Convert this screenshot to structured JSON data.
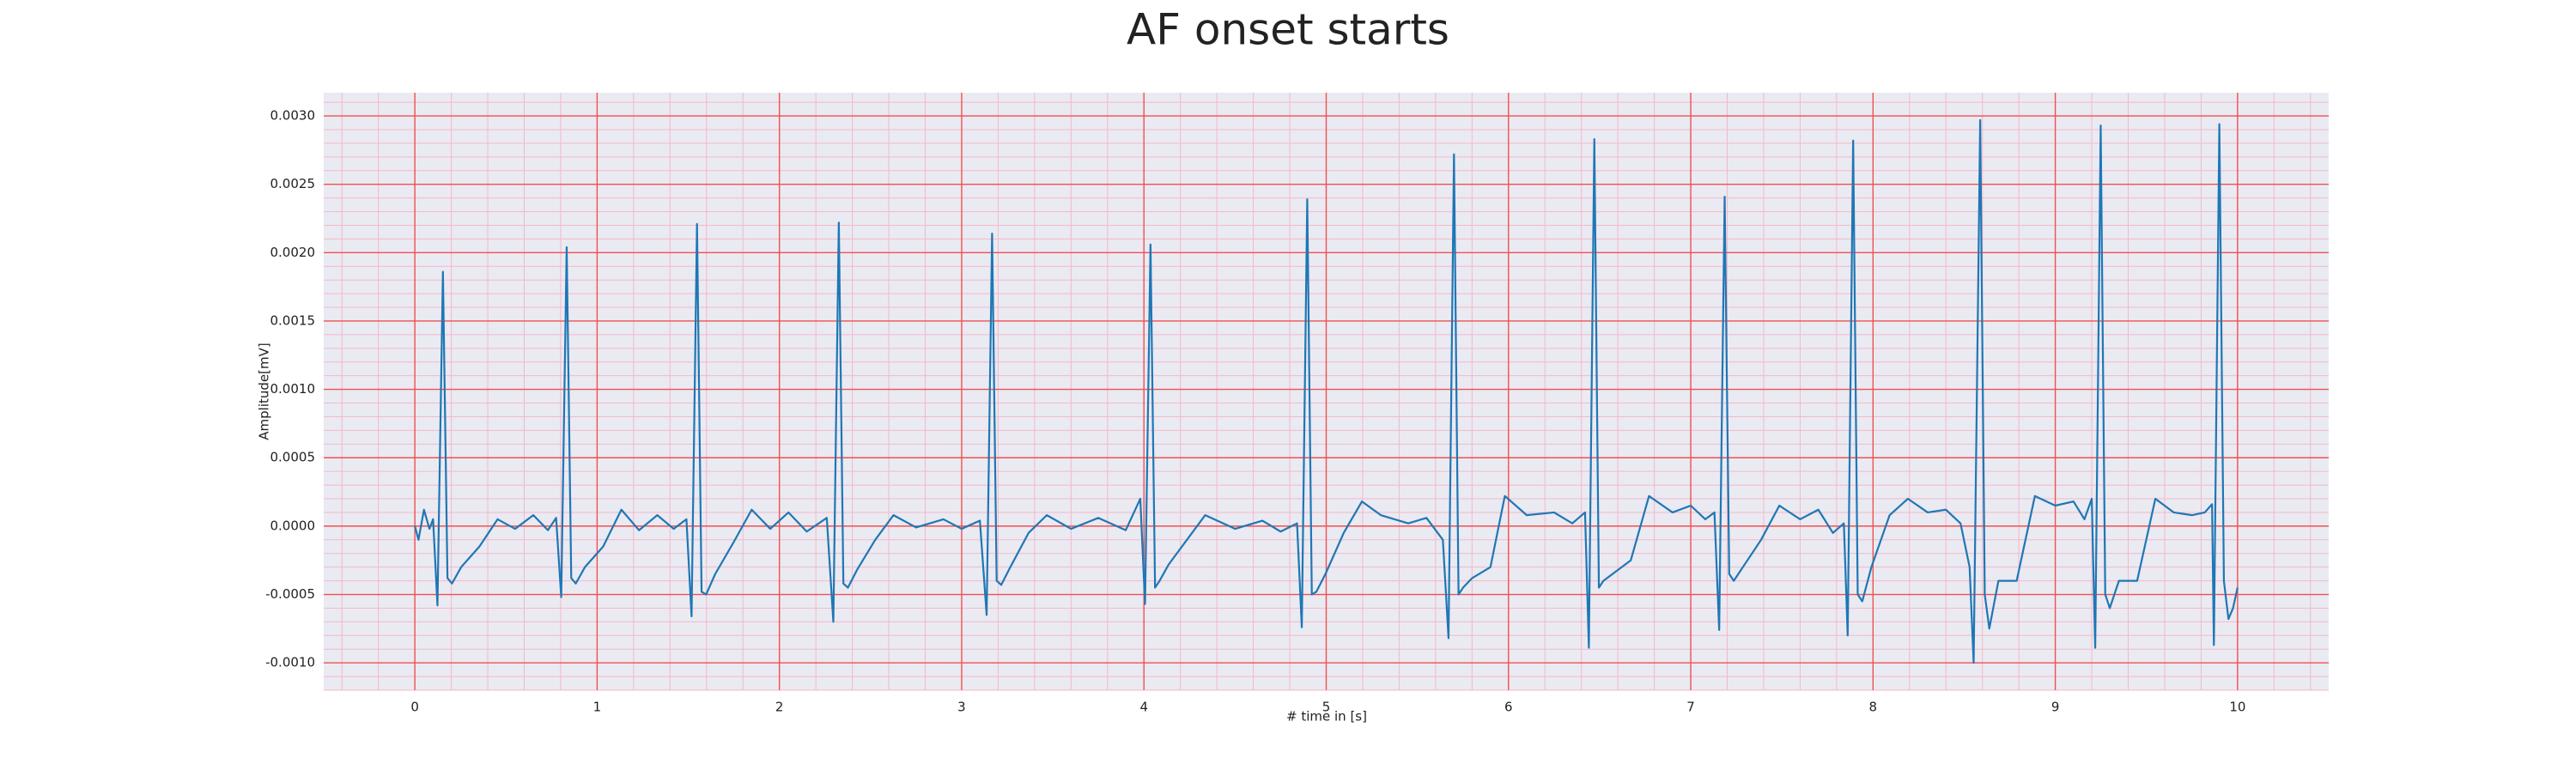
{
  "chart_data": {
    "type": "line",
    "title": "AF onset starts",
    "x_label": "# time in [s]",
    "y_label": "Amplitude[mV]",
    "color": "#1f77b4",
    "grid": true,
    "xlim": [
      -0.5,
      10.5
    ],
    "ylim": [
      -0.0012,
      0.00317
    ],
    "xticks": [
      0,
      1,
      2,
      3,
      4,
      5,
      6,
      7,
      8,
      9,
      10
    ],
    "yticks": [
      {
        "value": -0.001,
        "label": "-0.0010"
      },
      {
        "value": -0.0005,
        "label": "-0.0005"
      },
      {
        "value": 0,
        "label": "0.0000"
      },
      {
        "value": 0.0005,
        "label": "0.0005"
      },
      {
        "value": 0.001,
        "label": "0.0010"
      },
      {
        "value": 0.0015,
        "label": "0.0015"
      },
      {
        "value": 0.002,
        "label": "0.0020"
      },
      {
        "value": 0.0025,
        "label": "0.0025"
      },
      {
        "value": 0.003,
        "label": "0.0030"
      }
    ],
    "x": [
      0,
      0.02,
      0.05,
      0.08,
      0.1,
      0.124,
      0.154,
      0.179,
      0.204,
      0.254,
      0.354,
      0.454,
      0.55,
      0.65,
      0.73,
      0.775,
      0.803,
      0.833,
      0.858,
      0.883,
      0.933,
      1.033,
      1.133,
      1.23,
      1.33,
      1.42,
      1.49,
      1.518,
      1.548,
      1.573,
      1.598,
      1.648,
      1.748,
      1.848,
      1.95,
      2.05,
      2.15,
      2.26,
      2.296,
      2.326,
      2.351,
      2.376,
      2.426,
      2.526,
      2.626,
      2.75,
      2.9,
      3.0,
      3.1,
      3.137,
      3.167,
      3.192,
      3.217,
      3.267,
      3.367,
      3.467,
      3.6,
      3.75,
      3.9,
      3.98,
      4.006,
      4.036,
      4.061,
      4.086,
      4.136,
      4.236,
      4.336,
      4.5,
      4.65,
      4.75,
      4.84,
      4.866,
      4.896,
      4.921,
      4.946,
      4.996,
      5.096,
      5.196,
      5.3,
      5.45,
      5.55,
      5.64,
      5.671,
      5.701,
      5.726,
      5.751,
      5.801,
      5.901,
      5.98,
      6.1,
      6.25,
      6.35,
      6.42,
      6.441,
      6.471,
      6.496,
      6.521,
      6.571,
      6.671,
      6.771,
      6.9,
      7.0,
      7.08,
      7.13,
      7.156,
      7.186,
      7.211,
      7.236,
      7.286,
      7.386,
      7.486,
      7.6,
      7.7,
      7.78,
      7.84,
      7.861,
      7.891,
      7.916,
      7.941,
      7.991,
      8.091,
      8.191,
      8.3,
      8.4,
      8.48,
      8.53,
      8.552,
      8.588,
      8.613,
      8.638,
      8.688,
      8.788,
      8.888,
      9.0,
      9.1,
      9.16,
      9.2,
      9.219,
      9.249,
      9.274,
      9.299,
      9.349,
      9.449,
      9.549,
      9.65,
      9.75,
      9.82,
      9.86,
      9.87,
      9.9,
      9.925,
      9.95,
      9.975,
      10.0
    ],
    "values": [
      0,
      -0.0001,
      0.00012,
      -2e-05,
      5e-05,
      -0.00058,
      0.00186,
      -0.00038,
      -0.00042,
      -0.0003,
      -0.00015,
      5e-05,
      -2e-05,
      8e-05,
      -3e-05,
      6e-05,
      -0.00052,
      0.00204,
      -0.00038,
      -0.00042,
      -0.0003,
      -0.00015,
      0.00012,
      -3e-05,
      8e-05,
      -2e-05,
      5e-05,
      -0.00066,
      0.00221,
      -0.00048,
      -0.0005,
      -0.00035,
      -0.00012,
      0.00012,
      -2e-05,
      0.0001,
      -4e-05,
      6e-05,
      -0.0007,
      0.00222,
      -0.00042,
      -0.00045,
      -0.00032,
      -0.0001,
      8e-05,
      -1e-05,
      5e-05,
      -2e-05,
      4e-05,
      -0.00065,
      0.00214,
      -0.0004,
      -0.00043,
      -0.0003,
      -5e-05,
      8e-05,
      -2e-05,
      6e-05,
      -3e-05,
      0.0002,
      -0.00057,
      0.00206,
      -0.00045,
      -0.0004,
      -0.00028,
      -0.0001,
      8e-05,
      -2e-05,
      4e-05,
      -4e-05,
      2e-05,
      -0.00074,
      0.00239,
      -0.0005,
      -0.00048,
      -0.00035,
      -5e-05,
      0.00018,
      8e-05,
      2e-05,
      6e-05,
      -0.0001,
      -0.00082,
      0.00272,
      -0.0005,
      -0.00045,
      -0.00038,
      -0.0003,
      0.00022,
      8e-05,
      0.0001,
      2e-05,
      0.0001,
      -0.00089,
      0.00283,
      -0.00045,
      -0.0004,
      -0.00035,
      -0.00025,
      0.00022,
      0.0001,
      0.00015,
      5e-05,
      0.0001,
      -0.00076,
      0.00241,
      -0.00035,
      -0.0004,
      -0.0003,
      -0.0001,
      0.00015,
      5e-05,
      0.00012,
      -5e-05,
      2e-05,
      -0.0008,
      0.00282,
      -0.0005,
      -0.00055,
      -0.0003,
      8e-05,
      0.0002,
      0.0001,
      0.00012,
      2e-05,
      -0.0003,
      -0.001,
      0.00297,
      -0.0005,
      -0.00075,
      -0.0004,
      -0.0004,
      0.00022,
      0.00015,
      0.00018,
      5e-05,
      0.0002,
      -0.00089,
      0.00293,
      -0.0005,
      -0.0006,
      -0.0004,
      -0.0004,
      0.0002,
      0.0001,
      8e-05,
      0.0001,
      0.00016,
      -0.00087,
      0.00294,
      -0.0004,
      -0.00068,
      -0.0006,
      -0.00045
    ]
  }
}
